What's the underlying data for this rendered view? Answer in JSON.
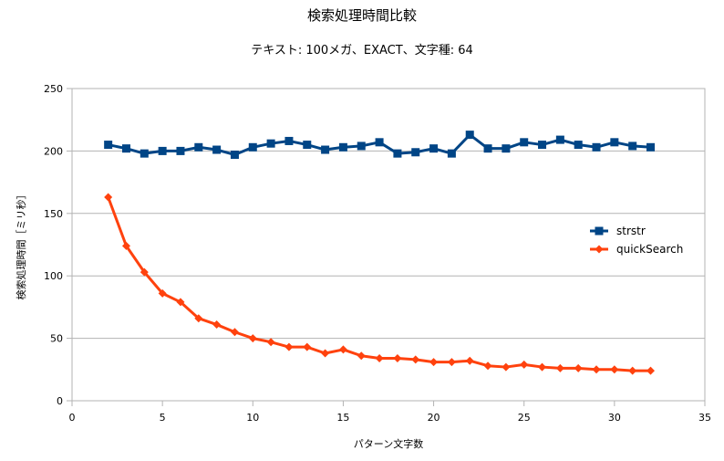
{
  "chart_data": {
    "type": "line",
    "title": "検索処理時間比較",
    "subtitle": "テキスト: 100メガ、EXACT、文字種: 64",
    "xlabel": "パターン文字数",
    "ylabel": "検索処理時間［ミリ秒］",
    "xlim": [
      0,
      35
    ],
    "ylim": [
      0,
      250
    ],
    "xticks": [
      0,
      5,
      10,
      15,
      20,
      25,
      30,
      35
    ],
    "yticks": [
      0,
      50,
      100,
      150,
      200,
      250
    ],
    "grid": "horizontal",
    "legend_position": "right",
    "x": [
      2,
      3,
      4,
      5,
      6,
      7,
      8,
      9,
      10,
      11,
      12,
      13,
      14,
      15,
      16,
      17,
      18,
      19,
      20,
      21,
      22,
      23,
      24,
      25,
      26,
      27,
      28,
      29,
      30,
      31,
      32
    ],
    "series": [
      {
        "name": "strstr",
        "color": "#004586",
        "marker": "square",
        "values": [
          205,
          202,
          198,
          200,
          200,
          203,
          201,
          197,
          203,
          206,
          208,
          205,
          201,
          203,
          204,
          207,
          198,
          199,
          202,
          198,
          213,
          202,
          202,
          207,
          205,
          209,
          205,
          203,
          207,
          204,
          203
        ]
      },
      {
        "name": "quickSearch",
        "color": "#ff420e",
        "marker": "diamond",
        "values": [
          163,
          124,
          103,
          86,
          79,
          66,
          61,
          55,
          50,
          47,
          43,
          43,
          38,
          41,
          36,
          34,
          34,
          33,
          31,
          31,
          32,
          28,
          27,
          29,
          27,
          26,
          26,
          25,
          25,
          24,
          24
        ]
      }
    ]
  }
}
